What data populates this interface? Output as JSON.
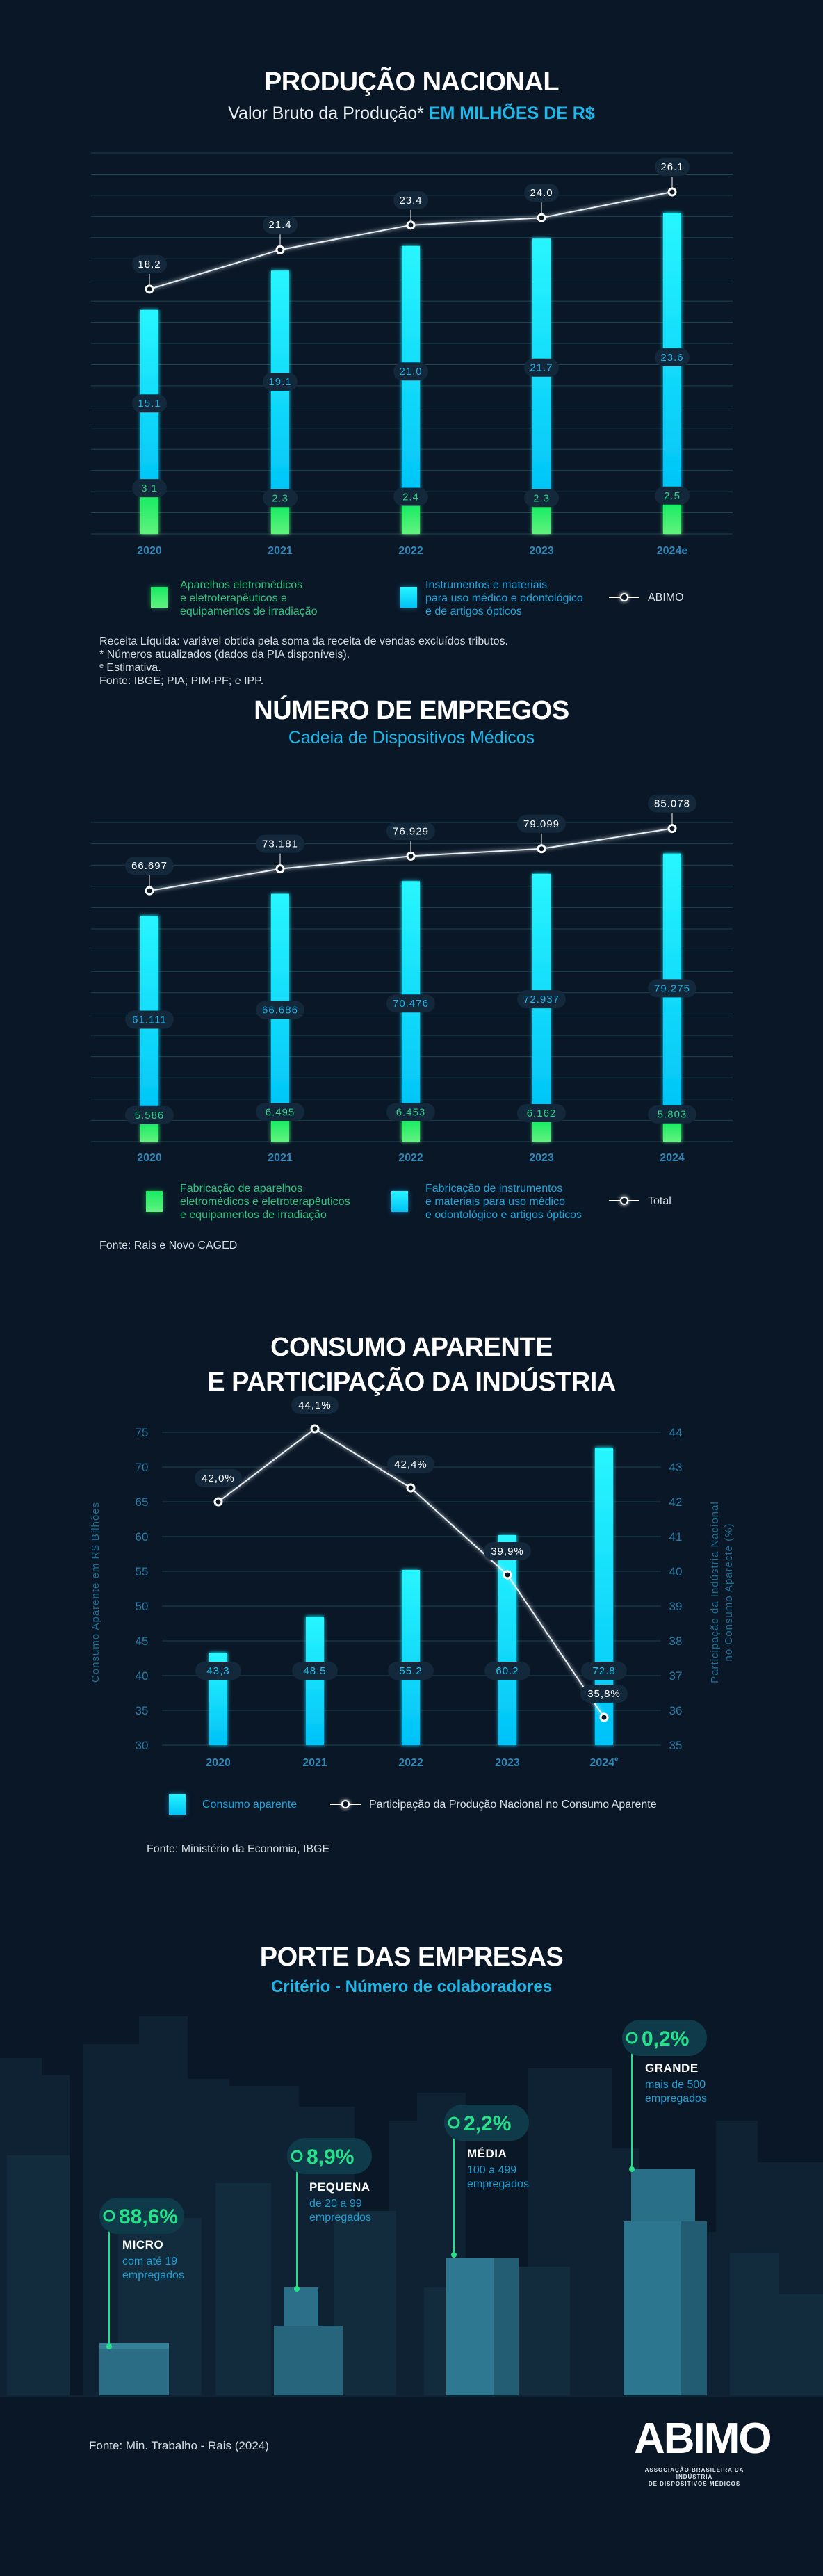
{
  "section1": {
    "title": "PRODUÇÃO NACIONAL",
    "subtitle_plain": "Valor Bruto da Produção*",
    "subtitle_accent": "EM MILHÕES DE R$",
    "legend": {
      "green": [
        "Aparelhos eletromédicos",
        "e eletroterapêuticos e",
        "equipamentos de irradiação"
      ],
      "cyan": [
        "Instrumentos e materiais",
        "para uso médico e odontológico",
        "e de artigos ópticos"
      ],
      "line": "ABIMO"
    },
    "notes": [
      "Receita Líquida: variável obtida pela soma da receita de vendas excluídos tributos.",
      "*  Números atualizados (dados da PIA disponíveis).",
      "ᵉ  Estimativa.",
      "Fonte: IBGE; PIA; PIM-PF; e IPP."
    ]
  },
  "section2": {
    "title": "NÚMERO DE EMPREGOS",
    "subtitle": "Cadeia de Dispositivos Médicos",
    "legend": {
      "green": [
        "Fabricação de aparelhos",
        "eletromédicos e eletroterapêuticos",
        "e equipamentos de irradiação"
      ],
      "cyan": [
        "Fabricação de instrumentos",
        "e materiais para uso médico",
        "e odontológico e artigos ópticos"
      ],
      "line": "Total"
    },
    "source": "Fonte: Rais e Novo CAGED"
  },
  "section3": {
    "title_line1": "CONSUMO APARENTE",
    "title_line2": "E PARTICIPAÇÃO DA INDÚSTRIA",
    "legend": {
      "bar": "Consumo aparente",
      "line": "Participação da Produção Nacional no Consumo Aparente"
    },
    "source": "Fonte: Ministério da Economia, IBGE"
  },
  "section4": {
    "title": "PORTE DAS EMPRESAS",
    "subtitle": "Critério - Número de colaboradores",
    "sizes": [
      {
        "percent": "88,6%",
        "value": 88.6,
        "name": "MICRO",
        "desc": [
          "com até 19",
          "empregados"
        ]
      },
      {
        "percent": "8,9%",
        "value": 8.9,
        "name": "PEQUENA",
        "desc": [
          "de 20 a 99",
          "empregados"
        ]
      },
      {
        "percent": "2,2%",
        "value": 2.2,
        "name": "MÉDIA",
        "desc": [
          "100 a 499",
          "empregados"
        ]
      },
      {
        "percent": "0,2%",
        "value": 0.2,
        "name": "GRANDE",
        "desc": [
          "mais de 500",
          "empregados"
        ]
      }
    ],
    "source": "Fonte: Min. Trabalho - Rais (2024)"
  },
  "logo": {
    "name": "ABIMO",
    "tagline": [
      "ASSOCIAÇÃO BRASILEIRA DA INDÚSTRIA",
      "DE DISPOSITIVOS MÉDICOS"
    ]
  },
  "colors": {
    "background": "#0a1727",
    "green": "#1ef06a",
    "cyan": "#1fe8ff",
    "label_blue": "#1fa6dc",
    "grid": "#1b4550"
  },
  "chart_data": [
    {
      "type": "bar",
      "stacked": true,
      "title": "PRODUÇÃO NACIONAL",
      "categories": [
        "2020",
        "2021",
        "2022",
        "2023",
        "2024e"
      ],
      "series": [
        {
          "name": "Aparelhos eletromédicos e eletroterapêuticos e equipamentos de irradiação",
          "values": [
            3.1,
            2.3,
            2.4,
            2.3,
            2.5
          ],
          "labels": [
            "3.1",
            "2.3",
            "2.4",
            "2.3",
            "2.5"
          ]
        },
        {
          "name": "Instrumentos e materiais para uso médico e odontológico e de artigos ópticos",
          "values": [
            15.1,
            19.1,
            21.0,
            21.7,
            23.6
          ],
          "labels": [
            "15.1",
            "19.1",
            "21.0",
            "21.7",
            "23.6"
          ]
        },
        {
          "name": "ABIMO",
          "kind": "line",
          "values": [
            18.2,
            21.4,
            23.4,
            24.0,
            26.1
          ],
          "labels": [
            "18.2",
            "21.4",
            "23.4",
            "24.0",
            "26.1"
          ]
        }
      ],
      "grid": true
    },
    {
      "type": "bar",
      "stacked": true,
      "title": "NÚMERO DE EMPREGOS",
      "categories": [
        "2020",
        "2021",
        "2022",
        "2023",
        "2024"
      ],
      "series": [
        {
          "name": "Fabricação de aparelhos eletromédicos e eletroterapêuticos e equipamentos de irradiação",
          "values": [
            5586,
            6495,
            6453,
            6162,
            5803
          ],
          "labels": [
            "5.586",
            "6.495",
            "6.453",
            "6.162",
            "5.803"
          ]
        },
        {
          "name": "Fabricação de instrumentos e materiais para uso médico e odontológico e artigos ópticos",
          "values": [
            61111,
            66686,
            70476,
            72937,
            79275
          ],
          "labels": [
            "61.111",
            "66.686",
            "70.476",
            "72.937",
            "79.275"
          ]
        },
        {
          "name": "Total",
          "kind": "line",
          "values": [
            66697,
            73181,
            76929,
            79099,
            85078
          ],
          "labels": [
            "66.697",
            "73.181",
            "76.929",
            "79.099",
            "85.078"
          ]
        }
      ],
      "grid": true
    },
    {
      "type": "bar",
      "title": "CONSUMO APARENTE E PARTICIPAÇÃO DA INDÚSTRIA",
      "categories": [
        "2020",
        "2021",
        "2022",
        "2023",
        "2024"
      ],
      "category_superscripts": [
        "",
        "",
        "",
        "",
        "e"
      ],
      "ylabel": "Consumo Aparente em R$ Bilhões",
      "y2label": [
        "Participação da Indústria Nacional",
        "no Consumo Aparecte (%)"
      ],
      "ylim": [
        30,
        75
      ],
      "yticks": [
        "30",
        "35",
        "40",
        "45",
        "50",
        "55",
        "60",
        "65",
        "70",
        "75"
      ],
      "y2lim": [
        35,
        44
      ],
      "y2ticks": [
        "35",
        "36",
        "37",
        "38",
        "39",
        "40",
        "41",
        "42",
        "43",
        "44"
      ],
      "series": [
        {
          "name": "Consumo aparente",
          "kind": "bar",
          "values": [
            43.3,
            48.5,
            55.2,
            60.2,
            72.8
          ],
          "labels": [
            "43,3",
            "48.5",
            "55.2",
            "60.2",
            "72.8"
          ]
        },
        {
          "name": "Participação da Produção Nacional no Consumo Aparente",
          "kind": "line",
          "axis": "right",
          "values": [
            42.0,
            44.1,
            42.4,
            39.9,
            35.8
          ],
          "labels": [
            "42,0%",
            "44,1%",
            "42,4%",
            "39,9%",
            "35,8%"
          ]
        }
      ],
      "grid": true
    }
  ]
}
